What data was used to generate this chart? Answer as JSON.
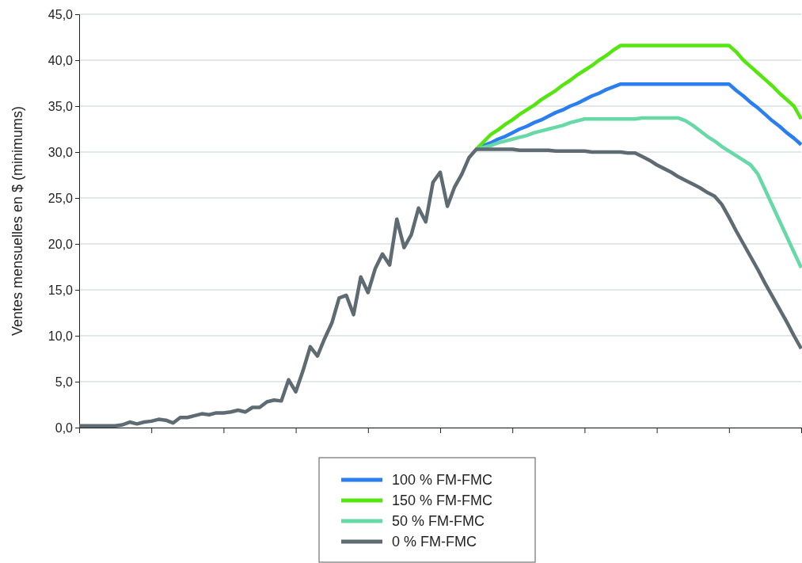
{
  "chart_data": {
    "type": "line",
    "ylabel": "Ventes mensuelles en $ (minimums)",
    "categories": [
      null,
      null,
      null,
      null,
      null,
      null,
      null,
      null,
      null,
      null,
      null,
      null,
      null,
      null,
      null,
      null,
      null,
      null,
      null,
      null,
      null,
      null,
      null,
      null,
      null,
      null,
      null,
      null,
      null,
      null,
      null,
      null,
      null,
      null,
      null,
      null,
      null,
      null,
      null,
      null,
      null,
      null,
      null,
      null,
      null,
      null,
      null,
      null,
      null,
      null,
      null,
      null,
      null,
      null,
      null,
      null,
      null,
      null,
      null,
      null,
      null,
      null,
      null,
      null,
      null,
      null,
      null,
      null,
      null,
      null,
      null,
      null,
      null,
      null,
      null,
      null,
      null,
      null,
      null,
      null,
      null,
      null,
      null,
      null,
      null,
      null,
      null,
      null,
      null,
      null,
      null,
      null,
      null,
      null,
      null,
      null,
      null,
      null,
      null,
      null,
      null
    ],
    "ylim": [
      0,
      45
    ],
    "yticks": [
      {
        "value": 0,
        "label": "0,0"
      },
      {
        "value": 5,
        "label": "5,0"
      },
      {
        "value": 10,
        "label": "10,0"
      },
      {
        "value": 15,
        "label": "15,0"
      },
      {
        "value": 20,
        "label": "20,0"
      },
      {
        "value": 25,
        "label": "25,0"
      },
      {
        "value": 30,
        "label": "30,0"
      },
      {
        "value": 35,
        "label": "35,0"
      },
      {
        "value": 40,
        "label": "40,0"
      },
      {
        "value": 45,
        "label": "45,0"
      }
    ],
    "tick_labels": "y",
    "grid": "y",
    "legend": "bottom",
    "marker": "none",
    "line_style": "solid",
    "series": [
      {
        "name": "100 % FM-FMC",
        "color": "#2a7ef0",
        "values": [
          null,
          null,
          null,
          null,
          null,
          null,
          null,
          null,
          null,
          null,
          null,
          null,
          null,
          null,
          null,
          null,
          null,
          null,
          null,
          null,
          null,
          null,
          null,
          null,
          null,
          null,
          null,
          null,
          null,
          null,
          null,
          null,
          null,
          null,
          null,
          null,
          null,
          null,
          null,
          null,
          null,
          null,
          null,
          null,
          null,
          null,
          null,
          null,
          null,
          null,
          null,
          null,
          null,
          null,
          null,
          30.3,
          30.7,
          31.0,
          31.4,
          31.7,
          32.1,
          32.5,
          32.8,
          33.2,
          33.5,
          33.9,
          34.3,
          34.6,
          35.0,
          35.3,
          35.7,
          36.1,
          36.4,
          36.8,
          37.1,
          37.4,
          37.4,
          37.4,
          37.4,
          37.4,
          37.4,
          37.4,
          37.4,
          37.4,
          37.4,
          37.4,
          37.4,
          37.4,
          37.4,
          37.4,
          37.4,
          36.7,
          36.1,
          35.4,
          34.8,
          34.1,
          33.4,
          32.8,
          32.1,
          31.5,
          30.8
        ]
      },
      {
        "name": "150 % FM-FMC",
        "color": "#55e60f",
        "values": [
          null,
          null,
          null,
          null,
          null,
          null,
          null,
          null,
          null,
          null,
          null,
          null,
          null,
          null,
          null,
          null,
          null,
          null,
          null,
          null,
          null,
          null,
          null,
          null,
          null,
          null,
          null,
          null,
          null,
          null,
          null,
          null,
          null,
          null,
          null,
          null,
          null,
          null,
          null,
          null,
          null,
          null,
          null,
          null,
          null,
          null,
          null,
          null,
          null,
          null,
          null,
          null,
          null,
          null,
          null,
          30.3,
          31.1,
          31.9,
          32.4,
          33.0,
          33.5,
          34.1,
          34.6,
          35.1,
          35.7,
          36.2,
          36.7,
          37.3,
          37.8,
          38.4,
          38.9,
          39.4,
          40.0,
          40.5,
          41.1,
          41.6,
          41.6,
          41.6,
          41.6,
          41.6,
          41.6,
          41.6,
          41.6,
          41.6,
          41.6,
          41.6,
          41.6,
          41.6,
          41.6,
          41.6,
          41.6,
          40.9,
          40.0,
          39.3,
          38.6,
          37.9,
          37.2,
          36.4,
          35.7,
          35.0,
          33.6
        ]
      },
      {
        "name": "50 % FM-FMC",
        "color": "#66d9a6",
        "values": [
          null,
          null,
          null,
          null,
          null,
          null,
          null,
          null,
          null,
          null,
          null,
          null,
          null,
          null,
          null,
          null,
          null,
          null,
          null,
          null,
          null,
          null,
          null,
          null,
          null,
          null,
          null,
          null,
          null,
          null,
          null,
          null,
          null,
          null,
          null,
          null,
          null,
          null,
          null,
          null,
          null,
          null,
          null,
          null,
          null,
          null,
          null,
          null,
          null,
          null,
          null,
          null,
          null,
          null,
          null,
          30.3,
          30.5,
          30.7,
          31.0,
          31.2,
          31.4,
          31.6,
          31.8,
          32.1,
          32.3,
          32.5,
          32.7,
          32.9,
          33.2,
          33.4,
          33.6,
          33.6,
          33.6,
          33.6,
          33.6,
          33.6,
          33.6,
          33.6,
          33.7,
          33.7,
          33.7,
          33.7,
          33.7,
          33.7,
          33.4,
          32.9,
          32.3,
          31.7,
          31.2,
          30.6,
          30.1,
          29.6,
          29.1,
          28.6,
          27.6,
          25.9,
          24.2,
          22.5,
          20.8,
          19.1,
          17.4
        ]
      },
      {
        "name": "0 % FM-FMC",
        "color": "#5f6b72",
        "values": [
          0.2,
          0.2,
          0.2,
          0.2,
          0.2,
          0.2,
          0.3,
          0.6,
          0.4,
          0.6,
          0.7,
          0.9,
          0.8,
          0.5,
          1.1,
          1.1,
          1.3,
          1.5,
          1.4,
          1.6,
          1.6,
          1.7,
          1.9,
          1.7,
          2.2,
          2.2,
          2.8,
          3.0,
          2.9,
          5.2,
          3.9,
          6.2,
          8.8,
          7.8,
          9.7,
          11.4,
          14.1,
          14.4,
          12.3,
          16.4,
          14.7,
          17.3,
          18.9,
          17.7,
          22.7,
          19.6,
          21.0,
          23.9,
          22.4,
          26.7,
          27.8,
          24.1,
          26.2,
          27.6,
          29.4,
          30.3,
          30.3,
          30.3,
          30.3,
          30.3,
          30.3,
          30.2,
          30.2,
          30.2,
          30.2,
          30.2,
          30.1,
          30.1,
          30.1,
          30.1,
          30.1,
          30.0,
          30.0,
          30.0,
          30.0,
          30.0,
          29.9,
          29.9,
          29.5,
          29.1,
          28.6,
          28.2,
          27.8,
          27.3,
          26.9,
          26.5,
          26.1,
          25.6,
          25.2,
          24.3,
          22.9,
          21.4,
          20.0,
          18.6,
          17.2,
          15.7,
          14.3,
          12.9,
          11.5,
          10.0,
          8.6
        ]
      }
    ]
  }
}
